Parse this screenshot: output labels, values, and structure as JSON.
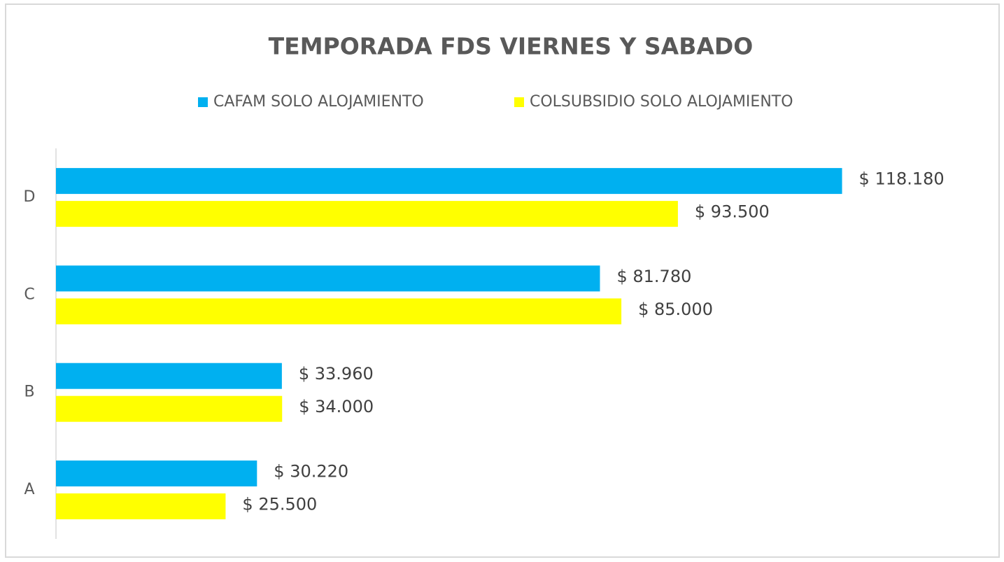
{
  "chart_data": {
    "type": "barh",
    "title": "TEMPORADA FDS VIERNES Y SABADO",
    "categories": [
      "A",
      "B",
      "C",
      "D"
    ],
    "series": [
      {
        "name": "CAFAM SOLO ALOJAMIENTO",
        "color": "#00b0f0",
        "values": [
          30220,
          33960,
          81780,
          118180
        ],
        "value_labels": [
          "$ 30.220",
          "$ 33.960",
          "$ 81.780",
          "$ 118.180"
        ]
      },
      {
        "name": "COLSUBSIDIO SOLO ALOJAMIENTO",
        "color": "#ffff00",
        "values": [
          25500,
          34000,
          85000,
          93500
        ],
        "value_labels": [
          "$ 25.500",
          "$ 34.000",
          "$ 85.000",
          "$ 93.500"
        ]
      }
    ],
    "xlim": [
      0,
      140000
    ],
    "legend": "top"
  }
}
